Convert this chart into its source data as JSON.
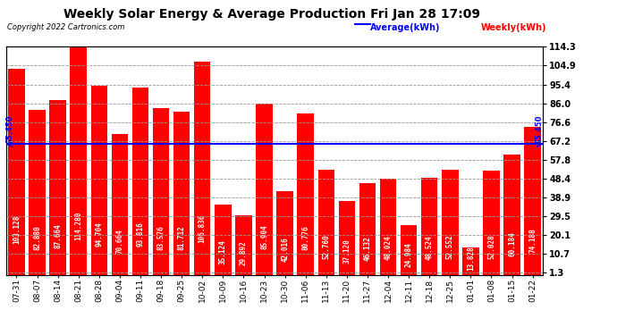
{
  "title": "Weekly Solar Energy & Average Production Fri Jan 28 17:09",
  "copyright": "Copyright 2022 Cartronics.com",
  "categories": [
    "07-31",
    "08-07",
    "08-14",
    "08-21",
    "08-28",
    "09-04",
    "09-11",
    "09-18",
    "09-25",
    "10-02",
    "10-09",
    "10-16",
    "10-23",
    "10-30",
    "11-06",
    "11-13",
    "11-20",
    "11-27",
    "12-04",
    "12-11",
    "12-18",
    "12-25",
    "01-01",
    "01-08",
    "01-15",
    "01-22"
  ],
  "values": [
    103.128,
    82.88,
    87.664,
    114.28,
    94.704,
    70.664,
    93.816,
    83.576,
    81.712,
    106.836,
    35.124,
    29.892,
    85.904,
    42.016,
    80.776,
    52.76,
    37.12,
    46.132,
    48.024,
    24.984,
    48.524,
    52.552,
    13.828,
    52.028,
    60.184,
    74.188
  ],
  "average": 65.45,
  "bar_color": "#ff0000",
  "average_color": "#0000ff",
  "average_label": "Average(kWh)",
  "weekly_label": "Weekly(kWh)",
  "ylim": [
    0,
    114.3
  ],
  "yticks_right": [
    1.3,
    10.7,
    20.1,
    29.5,
    38.9,
    48.4,
    57.8,
    67.2,
    76.6,
    86.0,
    95.4,
    104.9,
    114.3
  ],
  "bg_color": "#ffffff",
  "grid_color": "#999999",
  "title_fontsize": 10,
  "bar_text_color": "#ffffff",
  "bar_text_fontsize": 5.5,
  "avg_text": "65.450"
}
